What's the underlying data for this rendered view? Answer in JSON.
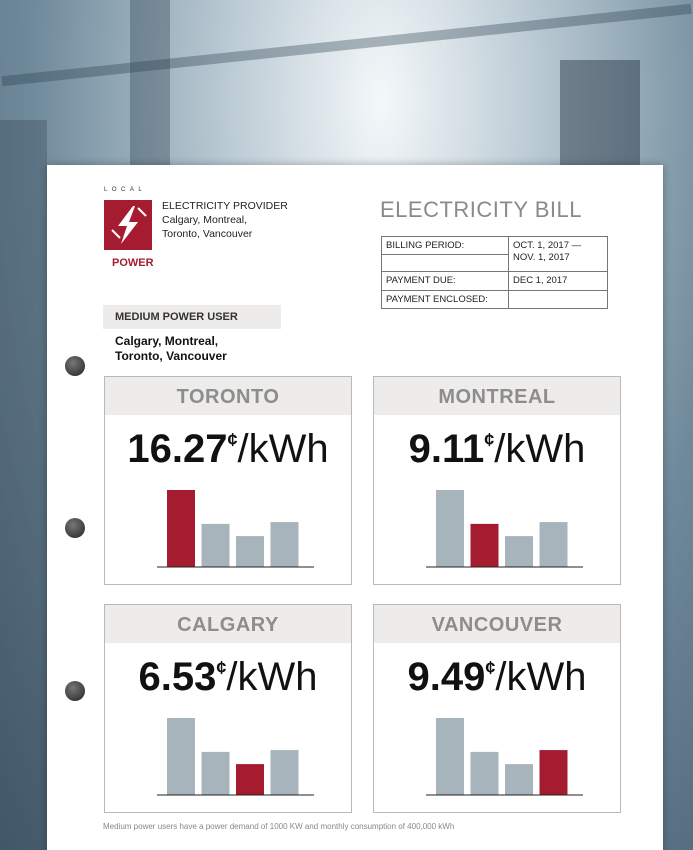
{
  "logo": {
    "top": "LOCAL",
    "bottom": "POWER"
  },
  "provider": {
    "heading": "ELECTRICITY PROVIDER",
    "lines": [
      "Calgary, Montreal,",
      "Toronto, Vancouver"
    ]
  },
  "title": "ELECTRICITY BILL",
  "bill_table": {
    "rows": [
      {
        "label": "BILLING PERIOD:",
        "value": "OCT. 1, 2017 — NOV. 1, 2017"
      },
      {
        "label": "PAYMENT DUE:",
        "value": "DEC 1, 2017"
      },
      {
        "label": "PAYMENT ENCLOSED:"
      }
    ]
  },
  "user": {
    "type": "MEDIUM POWER USER",
    "cities": [
      "Calgary, Montreal,",
      "Toronto, Vancouver"
    ]
  },
  "unit": {
    "cent": "¢",
    "per": "/kWh"
  },
  "highlight_color": "#a51c30",
  "bar_color": "#a7b4bb",
  "panels": [
    {
      "city": "TORONTO",
      "price": 16.27
    },
    {
      "city": "MONTREAL",
      "price": 9.11
    },
    {
      "city": "CALGARY",
      "price": 6.53
    },
    {
      "city": "VANCOUVER",
      "price": 9.49
    }
  ],
  "footnote": "Medium power users have a power demand of 1000 KW and monthly consumption of 400,000 kWh"
}
